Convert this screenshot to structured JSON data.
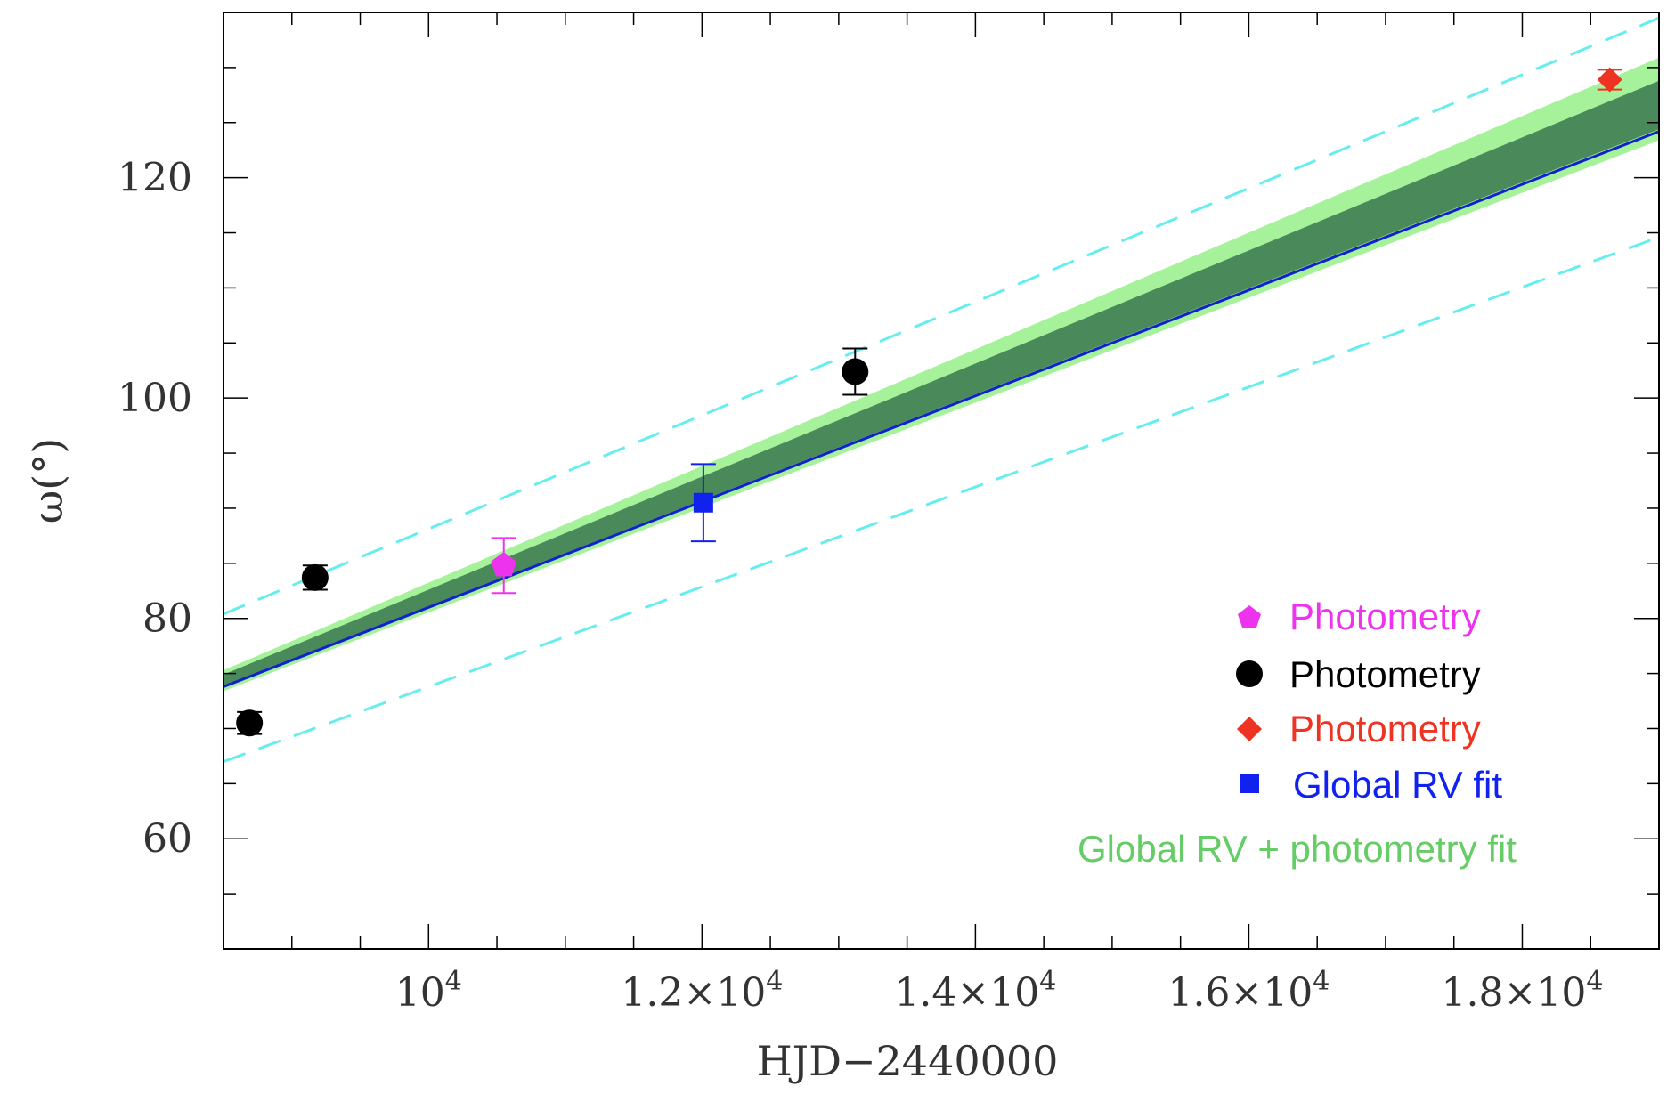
{
  "chart_data": {
    "type": "scatter",
    "title": "",
    "xlabel": "HJD−2440000",
    "ylabel": "ω(°)",
    "xlim": [
      8500,
      19000
    ],
    "ylim": [
      50,
      135
    ],
    "x_ticks": [
      {
        "value": 10000,
        "label": "10",
        "exp": "4"
      },
      {
        "value": 12000,
        "label": "1.2×10",
        "exp": "4"
      },
      {
        "value": 14000,
        "label": "1.4×10",
        "exp": "4"
      },
      {
        "value": 16000,
        "label": "1.6×10",
        "exp": "4"
      },
      {
        "value": 18000,
        "label": "1.8×10",
        "exp": "4"
      }
    ],
    "y_ticks": [
      {
        "value": 60,
        "label": "60"
      },
      {
        "value": 80,
        "label": "80"
      },
      {
        "value": 100,
        "label": "100"
      },
      {
        "value": 120,
        "label": "120"
      }
    ],
    "grid": false,
    "legend_position": "bottom-right",
    "series": [
      {
        "name": "Photometry",
        "marker": "pentagon",
        "color": "#ee33ee",
        "points": [
          {
            "x": 10550,
            "y": 84.8,
            "yerr": 2.5
          }
        ]
      },
      {
        "name": "Photometry",
        "marker": "circle",
        "color": "#000000",
        "points": [
          {
            "x": 8690,
            "y": 70.5,
            "yerr": 1.0
          },
          {
            "x": 9170,
            "y": 83.7,
            "yerr": 1.1
          },
          {
            "x": 13120,
            "y": 102.4,
            "yerr": 2.1
          }
        ]
      },
      {
        "name": "Photometry",
        "marker": "diamond",
        "color": "#ee3322",
        "points": [
          {
            "x": 18640,
            "y": 128.9,
            "yerr": 0.9
          }
        ]
      },
      {
        "name": "Global RV fit",
        "marker": "square",
        "color": "#1122ee",
        "points": [
          {
            "x": 12010,
            "y": 90.5,
            "yerr": 3.5
          }
        ]
      }
    ],
    "global_rv_fit_line": {
      "color": "#1122cc",
      "x": [
        8500,
        19000
      ],
      "y": [
        73.8,
        124.2
      ]
    },
    "global_rv_photometry_fit": {
      "name": "Global RV + photometry fit",
      "label_color": "#66cc66",
      "outer_band": {
        "color": "#a6f29a",
        "x": [
          8500,
          19000
        ],
        "lower": [
          73.4,
          123.4
        ],
        "upper": [
          75.3,
          130.9
        ]
      },
      "inner_band": {
        "color": "#4a8a5a",
        "x": [
          8500,
          19000
        ],
        "lower": [
          73.9,
          124.4
        ],
        "upper": [
          74.9,
          128.8
        ]
      }
    },
    "dashed_lines": {
      "color": "#66eeee",
      "upper": {
        "x": [
          8500,
          19000
        ],
        "y": [
          80.4,
          134.5
        ]
      },
      "lower": {
        "x": [
          8500,
          19000
        ],
        "y": [
          67.0,
          114.6
        ]
      }
    }
  }
}
